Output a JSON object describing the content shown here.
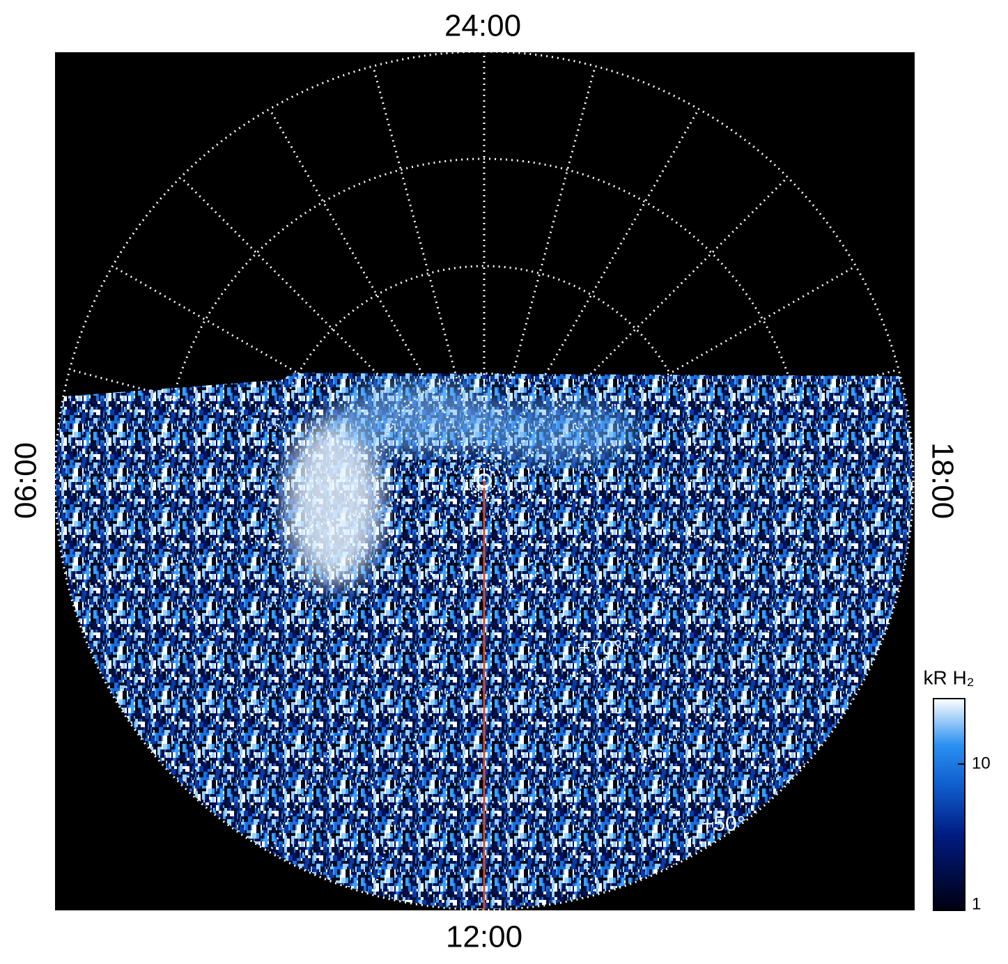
{
  "labels": {
    "top": "24:00",
    "left": "06:00",
    "right": "18:00",
    "bottom": "12:00"
  },
  "latitudes": [
    {
      "value": 70,
      "label": "+70°"
    },
    {
      "value": 50,
      "label": "+50°"
    }
  ],
  "colorbar": {
    "title": "kR H₂",
    "scale": "log",
    "lim": [
      1,
      28
    ],
    "ticks": [
      1,
      10
    ]
  }
}
